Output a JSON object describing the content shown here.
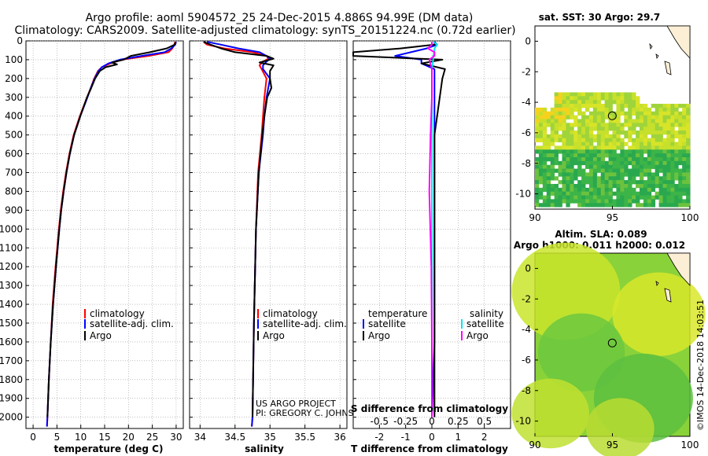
{
  "title": {
    "line1": "Argo profile: aoml 5904572_25 24-Dec-2015 4.886S 94.99E (DM data)",
    "line2": "Climatology: CARS2009. Satellite-adjusted climatology: synTS_20151224.nc (0.72d earlier)"
  },
  "colors": {
    "climatology": "#ff0000",
    "satellite": "#0000ff",
    "argo": "#000000",
    "sat_salinity": "#00e5ee",
    "argo_salinity": "#ff00ff"
  },
  "depth_axis": {
    "range": [
      0,
      2060
    ],
    "ticks": [
      "0",
      "100",
      "200",
      "300",
      "400",
      "500",
      "600",
      "700",
      "800",
      "900",
      "1000",
      "1100",
      "1200",
      "1300",
      "1400",
      "1500",
      "1600",
      "1700",
      "1800",
      "1900",
      "2000"
    ]
  },
  "chart_data": [
    {
      "type": "line",
      "id": "temperature",
      "xlabel": "temperature (deg C)",
      "xlim": [
        -1.5,
        31.5
      ],
      "xticks": [
        "0",
        "5",
        "10",
        "15",
        "20",
        "25",
        "30"
      ],
      "ylabel": "depth",
      "ylim": [
        0,
        2060
      ],
      "series": [
        {
          "name": "climatology",
          "color": "#ff0000",
          "depth": [
            5,
            20,
            40,
            60,
            80,
            100,
            120,
            140,
            160,
            200,
            250,
            300,
            400,
            500,
            600,
            700,
            800,
            900,
            1000,
            1200,
            1400,
            1600,
            1800,
            2000,
            2050
          ],
          "values": [
            29.8,
            29.6,
            29.2,
            28.4,
            24.2,
            18.6,
            16.2,
            14.4,
            13.6,
            12.8,
            12.1,
            11.3,
            9.8,
            8.5,
            7.6,
            6.9,
            6.3,
            5.8,
            5.4,
            4.7,
            4.1,
            3.7,
            3.3,
            3.0,
            2.9
          ]
        },
        {
          "name": "satellite-adj. clim.",
          "color": "#0000ff",
          "depth": [
            5,
            20,
            40,
            60,
            80,
            100,
            120,
            140,
            160,
            200,
            250,
            300,
            400,
            500,
            600,
            700,
            800,
            900,
            1000,
            1200,
            1400,
            1600,
            1800,
            2000,
            2050
          ],
          "values": [
            30.0,
            29.8,
            29.0,
            27.6,
            22.8,
            18.2,
            15.8,
            14.4,
            13.7,
            12.9,
            12.1,
            11.4,
            9.9,
            8.6,
            7.7,
            7.0,
            6.4,
            5.9,
            5.5,
            4.8,
            4.2,
            3.7,
            3.3,
            3.0,
            2.9
          ]
        },
        {
          "name": "Argo",
          "color": "#000000",
          "depth": [
            5,
            20,
            40,
            60,
            80,
            100,
            115,
            125,
            140,
            160,
            200,
            250,
            300,
            400,
            500,
            600,
            700,
            800,
            900,
            1000,
            1200,
            1400,
            1600,
            1800,
            2000
          ],
          "values": [
            29.9,
            29.7,
            28.0,
            24.5,
            20.5,
            19.0,
            16.5,
            17.6,
            15.2,
            14.0,
            13.0,
            12.2,
            11.3,
            9.9,
            8.6,
            7.7,
            7.0,
            6.4,
            5.9,
            5.5,
            4.8,
            4.2,
            3.7,
            3.3,
            3.0
          ]
        }
      ],
      "legend": {
        "entries": [
          "climatology",
          "satellite-adj. clim.",
          "Argo"
        ],
        "location": "lower-center"
      }
    },
    {
      "type": "line",
      "id": "salinity",
      "xlabel": "salinity",
      "xlim": [
        33.85,
        36.1
      ],
      "xticks": [
        "34",
        "34.5",
        "35",
        "35.5",
        "36"
      ],
      "ylim": [
        0,
        2060
      ],
      "series": [
        {
          "name": "climatology",
          "color": "#ff0000",
          "depth": [
            5,
            20,
            40,
            60,
            80,
            95,
            110,
            130,
            150,
            200,
            300,
            400,
            500,
            700,
            1000,
            1500,
            2000,
            2050
          ],
          "values": [
            34.05,
            34.1,
            34.35,
            34.75,
            34.95,
            34.98,
            34.9,
            34.85,
            34.88,
            34.95,
            34.92,
            34.9,
            34.88,
            34.83,
            34.8,
            34.77,
            34.75,
            34.74
          ]
        },
        {
          "name": "satellite-adj. clim.",
          "color": "#0000ff",
          "depth": [
            5,
            20,
            40,
            60,
            80,
            95,
            110,
            130,
            150,
            200,
            300,
            400,
            500,
            700,
            1000,
            1500,
            2000,
            2050
          ],
          "values": [
            34.1,
            34.3,
            34.55,
            34.85,
            34.95,
            35.0,
            34.95,
            34.9,
            34.9,
            35.0,
            34.95,
            34.92,
            34.9,
            34.84,
            34.8,
            34.77,
            34.75,
            34.74
          ]
        },
        {
          "name": "Argo",
          "color": "#000000",
          "depth": [
            5,
            20,
            40,
            60,
            80,
            95,
            105,
            115,
            130,
            160,
            200,
            250,
            300,
            400,
            500,
            700,
            1000,
            1500,
            2000
          ],
          "values": [
            34.05,
            34.15,
            34.3,
            34.5,
            34.95,
            35.05,
            34.95,
            34.85,
            35.05,
            35.0,
            35.0,
            35.02,
            34.96,
            34.92,
            34.89,
            34.84,
            34.8,
            34.77,
            34.75
          ]
        }
      ],
      "legend": {
        "entries": [
          "climatology",
          "satellite-adj. clim.",
          "Argo"
        ],
        "location": "lower-center"
      }
    },
    {
      "type": "line",
      "id": "differences",
      "xlabel": "T difference from climatology",
      "xlabel_top": "S difference from climatology",
      "xlim": [
        -3,
        3
      ],
      "xticks": [
        "-2",
        "-1",
        "0",
        "1",
        "2"
      ],
      "xticks_top": [
        "-0.5",
        "-0.25",
        "0",
        "0.25",
        "0.5"
      ],
      "ylim": [
        0,
        2060
      ],
      "series": [
        {
          "name": "temperature satellite",
          "color": "#0000ff",
          "depth": [
            5,
            20,
            40,
            60,
            80,
            100,
            120,
            150,
            200,
            300,
            500,
            800,
            1200,
            1600,
            2000
          ],
          "values": [
            0.1,
            0.2,
            -0.2,
            -0.8,
            -1.4,
            -0.4,
            -0.4,
            0.1,
            0.1,
            0.1,
            0.1,
            0.1,
            0.1,
            0.1,
            0.0
          ]
        },
        {
          "name": "temperature Argo",
          "color": "#000000",
          "depth": [
            5,
            20,
            40,
            60,
            80,
            100,
            120,
            150,
            200,
            300,
            500,
            800,
            1200,
            1600,
            2000
          ],
          "values": [
            0.1,
            0.1,
            -1.2,
            -3.0,
            -3.0,
            0.4,
            -0.4,
            0.5,
            0.4,
            0.3,
            0.1,
            0.1,
            0.1,
            0.1,
            0.1
          ]
        },
        {
          "name": "salinity satellite",
          "color": "#00e5ee",
          "depth": [
            5,
            20,
            40,
            60,
            80,
            100,
            150,
            200,
            300,
            500,
            800,
            1200,
            1600,
            2000
          ],
          "values": [
            0.05,
            0.2,
            0.1,
            0.1,
            0.05,
            0.05,
            0.0,
            0.0,
            0.0,
            0.0,
            0.0,
            0.0,
            0.0,
            0.0
          ]
        },
        {
          "name": "salinity Argo",
          "color": "#ff00ff",
          "depth": [
            5,
            20,
            40,
            60,
            80,
            100,
            150,
            200,
            300,
            500,
            800,
            1200,
            1600,
            2000
          ],
          "values": [
            0.0,
            0.0,
            -0.15,
            0.1,
            0.1,
            -0.1,
            0.0,
            0.0,
            0.0,
            -0.05,
            -0.1,
            -0.02,
            0.0,
            0.0
          ]
        }
      ],
      "legend": {
        "left_title": "temperature",
        "right_title": "salinity",
        "left_entries": [
          "satellite",
          "Argo"
        ],
        "right_entries": [
          "satellite",
          "Argo"
        ],
        "location": "lower"
      }
    },
    {
      "type": "heatmap",
      "id": "sst_map",
      "title": "sat. SST: 30 Argo: 29.7",
      "xlim": [
        90,
        100
      ],
      "ylim": [
        -11,
        1
      ],
      "xticks": [
        "90",
        "95",
        "100"
      ],
      "yticks": [
        "0",
        "-2",
        "-4",
        "-6",
        "-8",
        "-10"
      ],
      "marker": {
        "lon": 94.99,
        "lat": -4.886
      }
    },
    {
      "type": "heatmap",
      "id": "sla_map",
      "title_line1": "Altim. SLA: 0.089",
      "title_line2": "Argo h1000: 0.011 h2000: 0.012",
      "xlim": [
        90,
        100
      ],
      "ylim": [
        -11,
        1
      ],
      "xticks": [
        "90",
        "95",
        "100"
      ],
      "yticks": [
        "0",
        "-2",
        "-4",
        "-6",
        "-8",
        "-10"
      ],
      "marker": {
        "lon": 94.99,
        "lat": -4.886
      }
    }
  ],
  "credits": {
    "line1": "US ARGO PROJECT",
    "line2": "PI: GREGORY C. JOHNSON"
  },
  "watermark": "©IMOS 14-Dec-2018 14:03:51"
}
